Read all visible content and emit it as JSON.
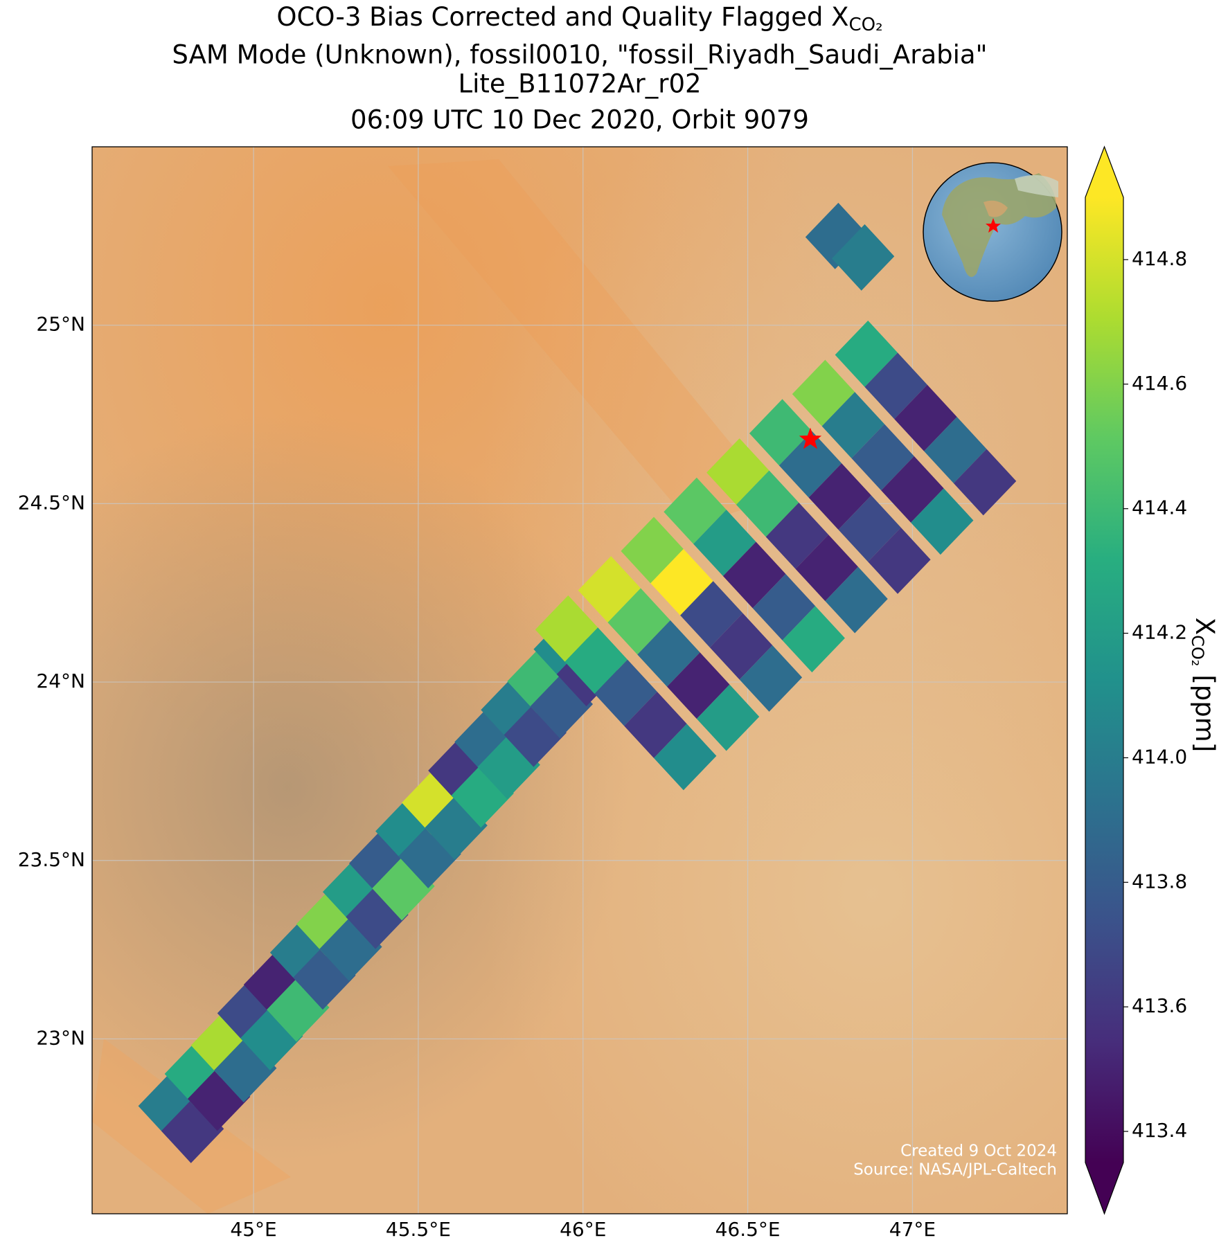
{
  "chart_data": {
    "type": "swath",
    "title_lines": [
      "SAM Mode (Unknown), fossil0010, \"fossil_Riyadh_Saudi_Arabia\"",
      "Lite_B11072Ar_r02",
      "06:09 UTC 10 Dec 2020, Orbit 9079"
    ],
    "title": "OCO-3 Bias Corrected and Quality Flagged X",
    "title_subscript": "CO₂",
    "xlim": [
      44.51,
      47.47
    ],
    "ylim": [
      22.51,
      25.5
    ],
    "xticks": [
      {
        "value": 45,
        "label": "45°E"
      },
      {
        "value": 45.5,
        "label": "45.5°E"
      },
      {
        "value": 46,
        "label": "46°E"
      },
      {
        "value": 46.5,
        "label": "46.5°E"
      },
      {
        "value": 47,
        "label": "47°E"
      }
    ],
    "yticks": [
      {
        "value": 23,
        "label": "23°N"
      },
      {
        "value": 23.5,
        "label": "23.5°N"
      },
      {
        "value": 24,
        "label": "24°N"
      },
      {
        "value": 24.5,
        "label": "24.5°N"
      },
      {
        "value": 25,
        "label": "25°N"
      }
    ],
    "grid": true,
    "clim": [
      413.35,
      414.9
    ],
    "cticks": [
      413.4,
      413.6,
      413.8,
      {
        "value": 414,
        "label": "414.0"
      },
      414.2,
      414.4,
      414.6,
      414.8
    ],
    "colorbar_label": "X",
    "colorbar_label_subscript": "CO₂",
    "colorbar_label_unit": "[ppm]",
    "colormap": [
      "#440154",
      "#472d7b",
      "#3b528b",
      "#2c728e",
      "#21918c",
      "#28ae80",
      "#5ec962",
      "#addc30",
      "#fde725"
    ],
    "target": {
      "lon": 46.69,
      "lat": 24.68,
      "color": "#ff0000"
    },
    "annotations": [
      "Created 9 Oct 2024",
      "Source: NASA/JPL-Caltech"
    ],
    "lon": [
      44.745,
      44.815,
      44.825,
      44.895,
      44.905,
      44.975,
      44.985,
      45.055,
      45.065,
      45.135,
      45.145,
      45.215,
      45.225,
      45.295,
      45.305,
      45.375,
      45.385,
      45.455,
      45.465,
      45.535,
      45.545,
      45.615,
      45.625,
      45.695,
      45.705,
      45.775,
      45.785,
      45.855,
      45.865,
      45.935,
      45.945,
      46.015,
      45.95,
      46.04,
      46.13,
      46.22,
      46.31,
      46.08,
      46.17,
      46.26,
      46.35,
      46.44,
      46.21,
      46.3,
      46.39,
      46.48,
      46.57,
      46.34,
      46.43,
      46.52,
      46.61,
      46.7,
      46.47,
      46.56,
      46.65,
      46.74,
      46.83,
      46.6,
      46.69,
      46.78,
      46.87,
      46.96,
      46.73,
      46.82,
      46.91,
      47.0,
      47.09,
      46.86,
      46.95,
      47.04,
      47.13,
      47.22,
      46.77,
      46.85
    ],
    "lat": [
      22.815,
      22.745,
      22.905,
      22.835,
      22.985,
      22.915,
      23.075,
      23.005,
      23.155,
      23.085,
      23.245,
      23.175,
      23.325,
      23.255,
      23.415,
      23.345,
      23.495,
      23.425,
      23.585,
      23.515,
      23.665,
      23.595,
      23.755,
      23.685,
      23.835,
      23.765,
      23.925,
      23.855,
      24.005,
      23.935,
      24.095,
      24.025,
      24.15,
      24.06,
      23.97,
      23.88,
      23.79,
      24.26,
      24.17,
      24.08,
      23.99,
      23.9,
      24.37,
      24.28,
      24.19,
      24.1,
      24.01,
      24.48,
      24.39,
      24.3,
      24.21,
      24.12,
      24.59,
      24.5,
      24.41,
      24.32,
      24.23,
      24.7,
      24.61,
      24.52,
      24.43,
      24.34,
      24.81,
      24.72,
      24.63,
      24.54,
      24.45,
      24.92,
      24.83,
      24.74,
      24.65,
      24.56,
      25.25,
      25.19
    ],
    "values": [
      414.0,
      413.6,
      414.3,
      413.5,
      414.7,
      413.9,
      413.7,
      414.1,
      413.5,
      414.4,
      414.0,
      413.8,
      414.6,
      413.9,
      414.2,
      413.7,
      413.8,
      414.5,
      414.1,
      413.9,
      414.8,
      414.0,
      413.6,
      414.3,
      413.9,
      414.2,
      414.0,
      413.7,
      414.4,
      413.8,
      414.1,
      413.6,
      414.7,
      414.3,
      413.8,
      413.6,
      414.1,
      414.8,
      414.5,
      413.9,
      413.5,
      414.2,
      414.6,
      414.9,
      413.7,
      413.6,
      413.9,
      414.5,
      414.2,
      413.5,
      413.8,
      414.3,
      414.7,
      414.4,
      413.6,
      413.5,
      413.9,
      414.4,
      413.9,
      413.5,
      413.7,
      413.6,
      414.6,
      414.0,
      413.8,
      413.5,
      414.1,
      414.3,
      413.7,
      413.5,
      413.9,
      413.6,
      413.9,
      414.0
    ]
  }
}
